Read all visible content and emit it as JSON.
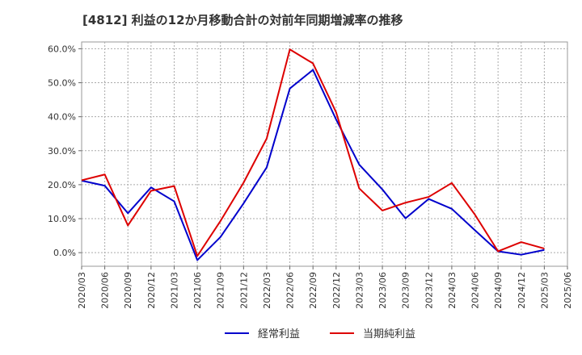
{
  "chart_data": {
    "type": "line",
    "title": "[4812]  利益の12か月移動合計の対前年同期増減率の推移",
    "xlabel": "",
    "ylabel": "",
    "ylim": [
      -4,
      62
    ],
    "yticks": [
      0,
      10,
      20,
      30,
      40,
      50,
      60
    ],
    "ytick_labels": [
      "0.0%",
      "10.0%",
      "20.0%",
      "30.0%",
      "40.0%",
      "50.0%",
      "60.0%"
    ],
    "categories": [
      "2020/03",
      "2020/06",
      "2020/09",
      "2020/12",
      "2021/03",
      "2021/06",
      "2021/09",
      "2021/12",
      "2022/03",
      "2022/06",
      "2022/09",
      "2022/12",
      "2023/03",
      "2023/06",
      "2023/09",
      "2023/12",
      "2024/03",
      "2024/06",
      "2024/09",
      "2024/12",
      "2025/03",
      "2025/06"
    ],
    "grid": true,
    "legend": "bottom-center",
    "series": [
      {
        "name": "経常利益",
        "color": "#0000cc",
        "values": [
          21.2,
          19.7,
          11.6,
          19.2,
          15.1,
          -2.2,
          4.6,
          14.5,
          25.1,
          48.3,
          53.8,
          39.2,
          25.9,
          18.6,
          10.1,
          15.8,
          12.9,
          6.6,
          0.4,
          -0.6,
          0.8,
          null
        ]
      },
      {
        "name": "当期純利益",
        "color": "#dd0000",
        "values": [
          21.3,
          23.0,
          8.0,
          18.2,
          19.6,
          -1.0,
          9.3,
          20.6,
          33.6,
          59.8,
          55.7,
          41.3,
          18.9,
          12.4,
          14.7,
          16.4,
          20.5,
          11.2,
          0.4,
          3.1,
          1.2,
          null
        ]
      }
    ]
  }
}
